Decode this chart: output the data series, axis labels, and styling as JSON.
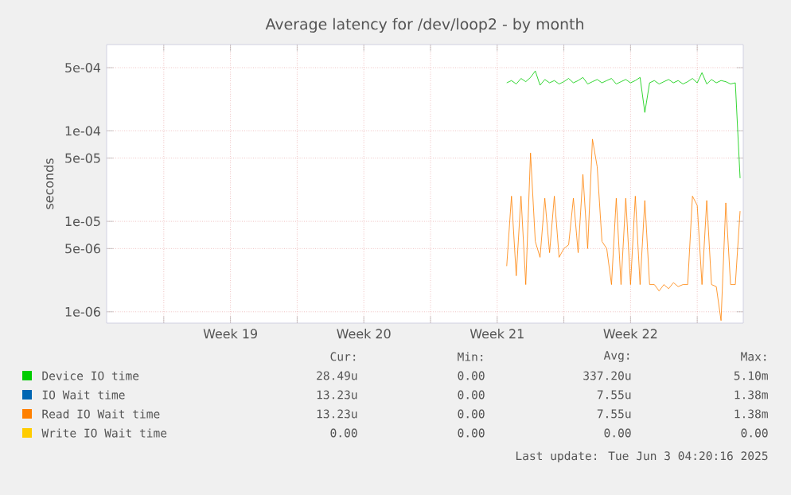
{
  "chart_data": {
    "type": "line",
    "title": "Average latency for /dev/loop2 - by month",
    "ylabel": "seconds",
    "log": true,
    "grid": true,
    "legend": "bottom",
    "line_style": "solid",
    "xlim": [
      "2025-05-02T00:00",
      "2025-06-04T10:00"
    ],
    "xticks": [
      {
        "value": "2025-05-05T00:00",
        "label": null
      },
      {
        "value": "2025-05-08T12:00",
        "label": "Week 19"
      },
      {
        "value": "2025-05-12T00:00",
        "label": null
      },
      {
        "value": "2025-05-15T12:00",
        "label": "Week 20"
      },
      {
        "value": "2025-05-19T00:00",
        "label": null
      },
      {
        "value": "2025-05-22T12:00",
        "label": "Week 21"
      },
      {
        "value": "2025-05-26T00:00",
        "label": null
      },
      {
        "value": "2025-05-29T12:00",
        "label": "Week 22"
      },
      {
        "value": "2025-06-02T00:00",
        "label": null
      }
    ],
    "ylim": [
      7.5e-07,
      0.0009
    ],
    "yticks": [
      {
        "value": 1e-06,
        "label": "1e-06"
      },
      {
        "value": 5e-06,
        "label": "5e-06"
      },
      {
        "value": 1e-05,
        "label": "1e-05"
      },
      {
        "value": 5e-05,
        "label": "5e-05"
      },
      {
        "value": 0.0001,
        "label": "1e-04"
      },
      {
        "value": 0.0005,
        "label": "5e-04"
      }
    ],
    "x": [
      "2025-05-23T00:00",
      "2025-05-23T06:00",
      "2025-05-23T12:00",
      "2025-05-23T18:00",
      "2025-05-24T00:00",
      "2025-05-24T06:00",
      "2025-05-24T12:00",
      "2025-05-24T18:00",
      "2025-05-25T00:00",
      "2025-05-25T06:00",
      "2025-05-25T12:00",
      "2025-05-25T18:00",
      "2025-05-26T00:00",
      "2025-05-26T06:00",
      "2025-05-26T12:00",
      "2025-05-26T18:00",
      "2025-05-27T00:00",
      "2025-05-27T06:00",
      "2025-05-27T12:00",
      "2025-05-27T18:00",
      "2025-05-28T00:00",
      "2025-05-28T06:00",
      "2025-05-28T12:00",
      "2025-05-28T18:00",
      "2025-05-29T00:00",
      "2025-05-29T06:00",
      "2025-05-29T12:00",
      "2025-05-29T18:00",
      "2025-05-30T00:00",
      "2025-05-30T06:00",
      "2025-05-30T12:00",
      "2025-05-30T18:00",
      "2025-05-31T00:00",
      "2025-05-31T06:00",
      "2025-05-31T12:00",
      "2025-05-31T18:00",
      "2025-06-01T00:00",
      "2025-06-01T06:00",
      "2025-06-01T12:00",
      "2025-06-01T18:00",
      "2025-06-02T00:00",
      "2025-06-02T06:00",
      "2025-06-02T12:00",
      "2025-06-02T18:00",
      "2025-06-03T00:00",
      "2025-06-03T06:00",
      "2025-06-03T12:00",
      "2025-06-03T18:00",
      "2025-06-04T00:00",
      "2025-06-04T06:00"
    ],
    "series": [
      {
        "name": "Device IO time",
        "color": "#00cc00",
        "values": [
          0.00034,
          0.00036,
          0.00033,
          0.00038,
          0.00035,
          0.00039,
          0.00046,
          0.00032,
          0.00037,
          0.00034,
          0.00036,
          0.00033,
          0.00035,
          0.00038,
          0.00034,
          0.00036,
          0.00039,
          0.00033,
          0.00035,
          0.00037,
          0.00034,
          0.00036,
          0.00038,
          0.00033,
          0.00035,
          0.00037,
          0.00034,
          0.00036,
          0.00039,
          0.00016,
          0.00034,
          0.00036,
          0.00033,
          0.00035,
          0.00037,
          0.00034,
          0.00036,
          0.00033,
          0.00035,
          0.00038,
          0.00034,
          0.00044,
          0.00033,
          0.00037,
          0.00034,
          0.00036,
          0.00035,
          0.00033,
          0.00034,
          3e-05
        ]
      },
      {
        "name": "IO Wait time",
        "color": "#0066b3",
        "values": [
          null,
          null,
          null,
          null,
          null,
          null,
          null,
          null,
          null,
          null,
          null,
          null,
          null,
          null,
          null,
          null,
          null,
          null,
          null,
          null,
          null,
          null,
          null,
          null,
          null,
          null,
          null,
          null,
          null,
          null,
          null,
          null,
          null,
          null,
          null,
          null,
          null,
          null,
          null,
          null,
          null,
          null,
          null,
          null,
          null,
          null,
          null,
          null,
          null,
          null
        ]
      },
      {
        "name": "Read IO Wait time",
        "color": "#ff8000",
        "values": [
          3.2e-06,
          1.9e-05,
          2.5e-06,
          1.9e-05,
          2e-06,
          5.7e-05,
          6e-06,
          4e-06,
          1.8e-05,
          4.5e-06,
          1.9e-05,
          4e-06,
          5e-06,
          5.5e-06,
          1.8e-05,
          4.5e-06,
          3.3e-05,
          5e-06,
          8.1e-05,
          4e-05,
          6e-06,
          5e-06,
          2e-06,
          1.8e-05,
          2e-06,
          1.8e-05,
          2e-06,
          1.9e-05,
          2e-06,
          1.7e-05,
          2e-06,
          2e-06,
          1.7e-06,
          2e-06,
          1.8e-06,
          2.1e-06,
          1.9e-06,
          2e-06,
          2e-06,
          1.9e-05,
          1.5e-05,
          2e-06,
          1.7e-05,
          2e-06,
          1.9e-06,
          8e-07,
          1.6e-05,
          2e-06,
          2e-06,
          1.3e-05
        ]
      },
      {
        "name": "Write IO Wait time",
        "color": "#ffcc00",
        "values": [
          null,
          null,
          null,
          null,
          null,
          null,
          null,
          null,
          null,
          null,
          null,
          null,
          null,
          null,
          null,
          null,
          null,
          null,
          null,
          null,
          null,
          null,
          null,
          null,
          null,
          null,
          null,
          null,
          null,
          null,
          null,
          null,
          null,
          null,
          null,
          null,
          null,
          null,
          null,
          null,
          null,
          null,
          null,
          null,
          null,
          null,
          null,
          null,
          null,
          null
        ]
      }
    ],
    "annotations": [
      "Cur:",
      "Min:",
      "Avg:",
      "Max:",
      "28.49u",
      "0.00",
      "337.20u",
      "5.10m",
      "13.23u",
      "0.00",
      "7.55u",
      "1.38m",
      "13.23u",
      "0.00",
      "7.55u",
      "1.38m",
      "0.00",
      "0.00",
      "0.00",
      "0.00",
      "Last update: Tue Jun  3 04:20:16 2025"
    ]
  }
}
